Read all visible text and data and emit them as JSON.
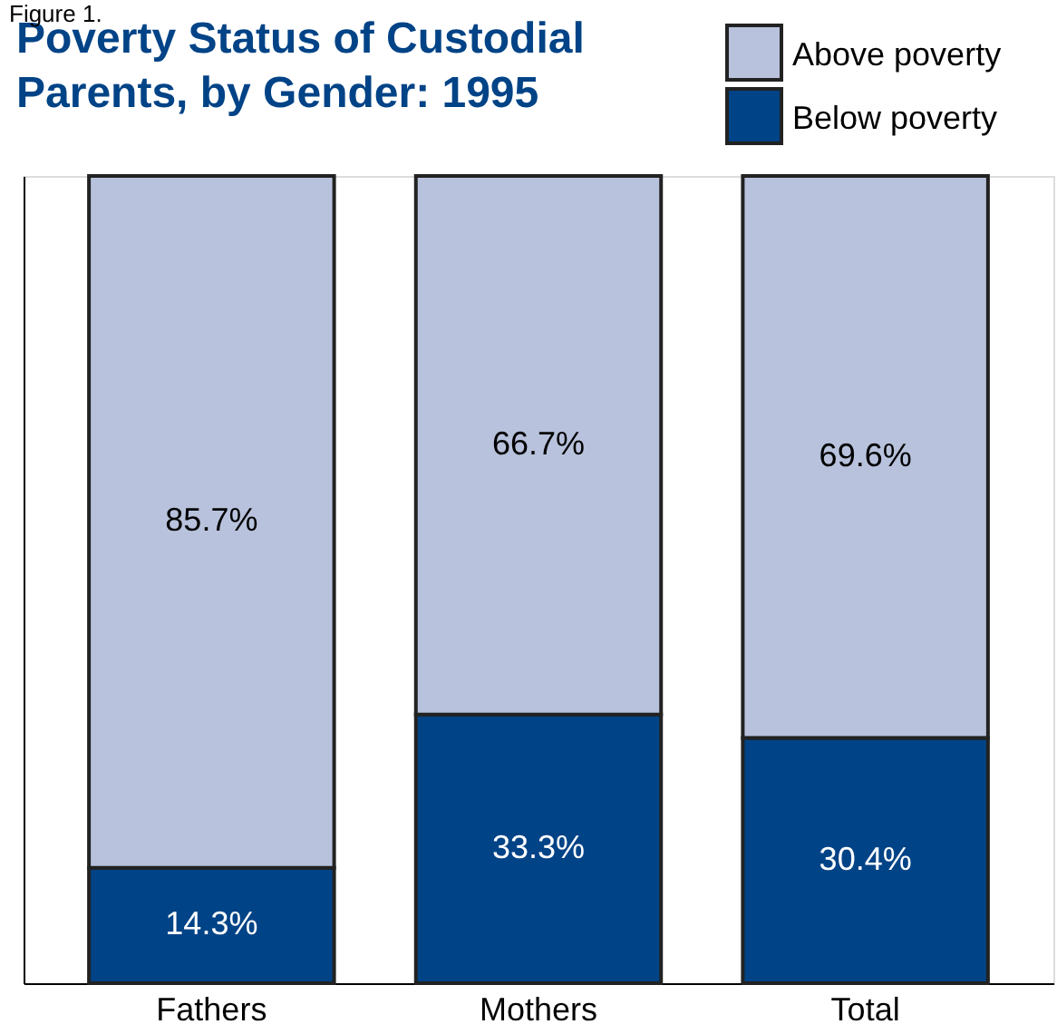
{
  "chart_data": {
    "type": "bar",
    "title": "Poverty Status of Custodial Parents, by Gender:  1995",
    "annotations": [
      "Figure 1."
    ],
    "categories": [
      "Fathers",
      "Mothers",
      "Total"
    ],
    "stacked": true,
    "series": [
      {
        "name": "Below poverty",
        "color": "#004386",
        "values": [
          14.3,
          33.3,
          30.4
        ],
        "value_labels": [
          "14.3%",
          "33.3%",
          "30.4%"
        ]
      },
      {
        "name": "Above poverty",
        "color": "#b8c2dc",
        "values": [
          85.7,
          66.7,
          69.6
        ],
        "value_labels": [
          "85.7%",
          "66.7%",
          "69.6%"
        ]
      }
    ],
    "tick_labels": "x",
    "legend": "top right",
    "grid": false
  }
}
